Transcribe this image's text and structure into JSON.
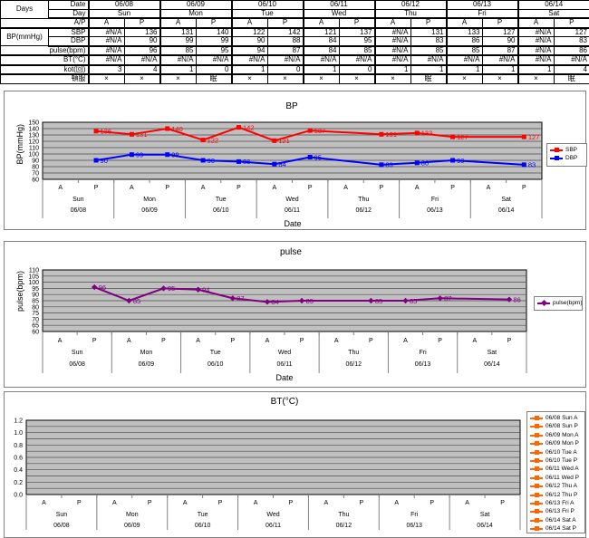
{
  "table": {
    "corner_label": "Days",
    "row_labels": {
      "date": "Date",
      "day": "Day",
      "ap": "A/P",
      "bp_group": "BP(mmHg)",
      "sbp": "SBP",
      "dbp": "DBP",
      "pulse": "pulse(bpm)",
      "bt": "BT(°C)",
      "kot": "kot(回)",
      "med": "頓服"
    },
    "dates": [
      "06/08",
      "06/09",
      "06/10",
      "06/11",
      "06/12",
      "06/13",
      "06/14"
    ],
    "days": [
      "Sun",
      "Mon",
      "Tue",
      "Wed",
      "Thu",
      "Fri",
      "Sat"
    ],
    "ap_labels": [
      "A",
      "P"
    ],
    "values": {
      "sbp": [
        "#N/A",
        "136",
        "131",
        "140",
        "122",
        "142",
        "121",
        "137",
        "#N/A",
        "131",
        "133",
        "127",
        "#N/A",
        "127"
      ],
      "dbp": [
        "#N/A",
        "90",
        "99",
        "99",
        "90",
        "88",
        "84",
        "95",
        "#N/A",
        "83",
        "86",
        "90",
        "#N/A",
        "83"
      ],
      "pulse": [
        "#N/A",
        "96",
        "85",
        "95",
        "94",
        "87",
        "84",
        "85",
        "#N/A",
        "85",
        "85",
        "87",
        "#N/A",
        "86"
      ],
      "bt": [
        "#N/A",
        "#N/A",
        "#N/A",
        "#N/A",
        "#N/A",
        "#N/A",
        "#N/A",
        "#N/A",
        "#N/A",
        "#N/A",
        "#N/A",
        "#N/A",
        "#N/A",
        "#N/A"
      ],
      "kot": [
        "3",
        "4",
        "1",
        "0",
        "1",
        "0",
        "1",
        "0",
        "1",
        "1",
        "1",
        "1",
        "1",
        "4"
      ],
      "med": [
        "×",
        "×",
        "×",
        "眠",
        "×",
        "×",
        "×",
        "×",
        "×",
        "眠",
        "×",
        "×",
        "×",
        "眠"
      ]
    }
  },
  "chart_data": [
    {
      "id": "bp",
      "type": "line",
      "title": "BP",
      "ylabel": "BP(mmHg)",
      "xlabel": "Date",
      "ylim": [
        60,
        150
      ],
      "ytick_step": 10,
      "grid_step": 10,
      "yticks": [
        "150",
        "140",
        "130",
        "120",
        "110",
        "100",
        "90",
        "80",
        "70",
        "60"
      ],
      "ap_labels": [
        "A",
        "P"
      ],
      "groups": [
        {
          "day": "Sun",
          "date": "06/08"
        },
        {
          "day": "Mon",
          "date": "06/09"
        },
        {
          "day": "Tue",
          "date": "06/10"
        },
        {
          "day": "Wed",
          "date": "06/11"
        },
        {
          "day": "Thu",
          "date": "06/12"
        },
        {
          "day": "Fri",
          "date": "06/13"
        },
        {
          "day": "Sat",
          "date": "06/14"
        }
      ],
      "plot_bg": "#c0c0c0",
      "legend_position": "right",
      "series": [
        {
          "name": "SBP",
          "color": "#ff0000",
          "marker": "square",
          "values": [
            null,
            136,
            131,
            140,
            122,
            142,
            121,
            137,
            null,
            131,
            133,
            127,
            null,
            127
          ]
        },
        {
          "name": "DBP",
          "color": "#0000ff",
          "marker": "square",
          "values": [
            null,
            90,
            99,
            99,
            90,
            88,
            84,
            95,
            null,
            83,
            86,
            90,
            null,
            83
          ]
        }
      ]
    },
    {
      "id": "pulse",
      "type": "line",
      "title": "pulse",
      "ylabel": "pulse(bpm)",
      "xlabel": "Date",
      "ylim": [
        60,
        110
      ],
      "ytick_step": 5,
      "grid_step": 5,
      "yticks": [
        "110",
        "105",
        "100",
        "95",
        "90",
        "85",
        "80",
        "75",
        "70",
        "65",
        "60"
      ],
      "ap_labels": [
        "A",
        "P"
      ],
      "groups": [
        {
          "day": "Sun",
          "date": "06/08"
        },
        {
          "day": "Mon",
          "date": "06/09"
        },
        {
          "day": "Tue",
          "date": "06/10"
        },
        {
          "day": "Wed",
          "date": "06/11"
        },
        {
          "day": "Thu",
          "date": "06/12"
        },
        {
          "day": "Fri",
          "date": "06/13"
        },
        {
          "day": "Sat",
          "date": "06/14"
        }
      ],
      "plot_bg": "#c0c0c0",
      "legend_position": "right",
      "series": [
        {
          "name": "pulse(bpm)",
          "color": "#800080",
          "marker": "diamond",
          "values": [
            null,
            96,
            85,
            95,
            94,
            87,
            84,
            85,
            null,
            85,
            85,
            87,
            null,
            86
          ]
        }
      ]
    },
    {
      "id": "bt",
      "type": "line",
      "title": "BT(°C)",
      "ylabel": "",
      "xlabel": "",
      "ylim": [
        0,
        1.2
      ],
      "ytick_step": 0.2,
      "grid_step": 0.1,
      "yticks": [
        "1.2",
        "1.0",
        "0.8",
        "0.6",
        "0.4",
        "0.2",
        "0.0"
      ],
      "ap_labels": [
        "A",
        "P"
      ],
      "groups": [
        {
          "day": "Sun",
          "date": "06/08"
        },
        {
          "day": "Mon",
          "date": "06/09"
        },
        {
          "day": "Tue",
          "date": "06/10"
        },
        {
          "day": "Wed",
          "date": "06/11"
        },
        {
          "day": "Thu",
          "date": "06/12"
        },
        {
          "day": "Fri",
          "date": "06/13"
        },
        {
          "day": "Sat",
          "date": "06/14"
        }
      ],
      "plot_bg": "#c0c0c0",
      "legend_position": "right",
      "series": [],
      "legend_entries": [
        {
          "label": "06/08 Sun A",
          "color": "#ff6600"
        },
        {
          "label": "06/08 Sun P",
          "color": "#ff6600"
        },
        {
          "label": "06/09 Mon A",
          "color": "#ff6600"
        },
        {
          "label": "06/09 Mon P",
          "color": "#ff6600"
        },
        {
          "label": "06/10 Tue A",
          "color": "#ff6600"
        },
        {
          "label": "06/10 Tue P",
          "color": "#ff6600"
        },
        {
          "label": "06/11 Wed A",
          "color": "#ff6600"
        },
        {
          "label": "06/11 Wed P",
          "color": "#ff6600"
        },
        {
          "label": "06/12 Thu A",
          "color": "#ff6600"
        },
        {
          "label": "06/12 Thu P",
          "color": "#ff6600"
        },
        {
          "label": "06/13 Fri A",
          "color": "#ff6600"
        },
        {
          "label": "06/13 Fri P",
          "color": "#ff6600"
        },
        {
          "label": "06/14 Sat A",
          "color": "#ff6600"
        },
        {
          "label": "06/14 Sat P",
          "color": "#ff6600"
        }
      ]
    }
  ]
}
